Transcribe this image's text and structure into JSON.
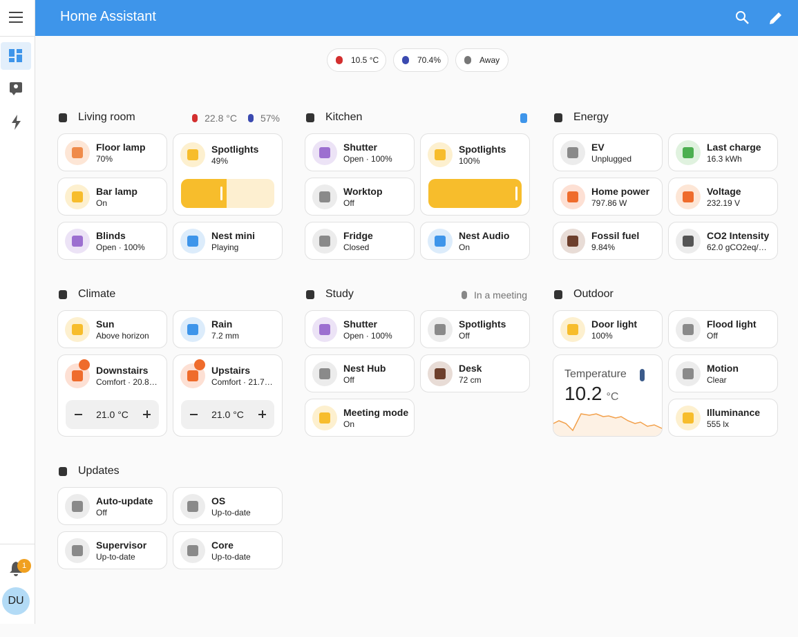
{
  "header": {
    "title": "Home Assistant"
  },
  "sidebar": {
    "notifications": "1",
    "user": "DU"
  },
  "badges": [
    "10.5 °C",
    "70.4%",
    "Away"
  ],
  "sections": [
    {
      "title": "Living room",
      "info": [
        "22.8 °C",
        "57%"
      ],
      "tiles": [
        {
          "name": "Floor lamp",
          "state": "70%"
        },
        {
          "name": "Spotlights",
          "state": "49%",
          "brightness": 49
        },
        {
          "name": "Bar lamp",
          "state": "On"
        },
        {
          "name": "Blinds",
          "state": "Open · 100%"
        },
        {
          "name": "Nest mini",
          "state": "Playing"
        }
      ]
    },
    {
      "title": "Kitchen",
      "tiles": [
        {
          "name": "Shutter",
          "state": "Open · 100%"
        },
        {
          "name": "Spotlights",
          "state": "100%",
          "brightness": 100
        },
        {
          "name": "Worktop",
          "state": "Off"
        },
        {
          "name": "Fridge",
          "state": "Closed"
        },
        {
          "name": "Nest Audio",
          "state": "On"
        }
      ]
    },
    {
      "title": "Energy",
      "tiles": [
        {
          "name": "EV",
          "state": "Unplugged"
        },
        {
          "name": "Last charge",
          "state": "16.3 kWh"
        },
        {
          "name": "Home power",
          "state": "797.86 W"
        },
        {
          "name": "Voltage",
          "state": "232.19 V"
        },
        {
          "name": "Fossil fuel",
          "state": "9.84%"
        },
        {
          "name": "CO2 Intensity",
          "state": "62.0 gCO2eq/…"
        }
      ]
    },
    {
      "title": "Climate",
      "tiles": [
        {
          "name": "Sun",
          "state": "Above horizon"
        },
        {
          "name": "Rain",
          "state": "7.2 mm"
        },
        {
          "name": "Downstairs",
          "state": "Comfort · 20.8…",
          "target": "21.0 °C"
        },
        {
          "name": "Upstairs",
          "state": "Comfort · 21.7…",
          "target": "21.0 °C"
        }
      ]
    },
    {
      "title": "Study",
      "info": [
        "In a meeting"
      ],
      "tiles": [
        {
          "name": "Shutter",
          "state": "Open · 100%"
        },
        {
          "name": "Spotlights",
          "state": "Off"
        },
        {
          "name": "Nest Hub",
          "state": "Off"
        },
        {
          "name": "Desk",
          "state": "72 cm"
        },
        {
          "name": "Meeting mode",
          "state": "On"
        }
      ]
    },
    {
      "title": "Outdoor",
      "tiles": [
        {
          "name": "Door light",
          "state": "100%"
        },
        {
          "name": "Flood light",
          "state": "Off"
        },
        {
          "name": "Temperature",
          "value": "10.2",
          "unit": "°C"
        },
        {
          "name": "Motion",
          "state": "Clear"
        },
        {
          "name": "Illuminance",
          "state": "555 lx"
        }
      ]
    },
    {
      "title": "Updates",
      "tiles": [
        {
          "name": "Auto-update",
          "state": "Off"
        },
        {
          "name": "OS",
          "state": "Up-to-date"
        },
        {
          "name": "Supervisor",
          "state": "Up-to-date"
        },
        {
          "name": "Core",
          "state": "Up-to-date"
        }
      ]
    }
  ]
}
